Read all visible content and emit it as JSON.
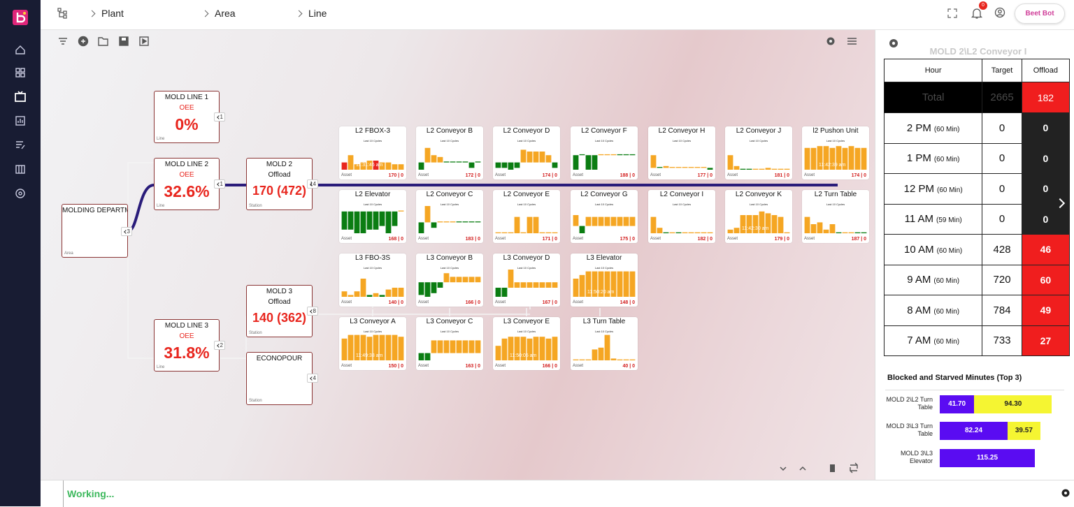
{
  "nav": {
    "breadcrumb": [
      "Plant",
      "Area",
      "Line"
    ],
    "notification_count": 0,
    "bot_button": "Beet Bot"
  },
  "tree": {
    "area": {
      "title": "MOLDING DEPARTM",
      "kind": "Area",
      "children": 3
    },
    "lines": [
      {
        "title": "MOLD LINE 1",
        "metric": "OEE",
        "value": "0%",
        "kind": "Line",
        "children": 1
      },
      {
        "title": "MOLD LINE 2",
        "metric": "OEE",
        "value": "32.6%",
        "kind": "Line",
        "children": 1
      },
      {
        "title": "MOLD LINE 3",
        "metric": "OEE",
        "value": "31.8%",
        "kind": "Line",
        "children": 2
      }
    ],
    "stations": [
      {
        "title": "MOLD 2",
        "subtitle": "Offload",
        "value": "170 (472)",
        "kind": "Station",
        "children": 14
      },
      {
        "title": "MOLD 3",
        "subtitle": "Offload",
        "value": "140 (362)",
        "kind": "Station",
        "children": 8
      },
      {
        "title": "ECONOPOUR",
        "kind": "Station",
        "children": 4
      }
    ]
  },
  "asset_rows": [
    [
      {
        "name": "L2 FBOX-3",
        "subtitle": "Last 10 Cycles",
        "stamp": "11:31:46 am",
        "footer": "Asset",
        "count": "170 | 0",
        "values": [
          4,
          8,
          3,
          4,
          5,
          5,
          4,
          4,
          3,
          3
        ],
        "colors": [
          "#e8261e",
          "#f5a623",
          "#f5a623",
          "#f5a623",
          "#f5a623",
          "#e8261e",
          "#f5a623",
          "#f5a623",
          "#f5a623",
          "#f5a623"
        ]
      },
      {
        "name": "L2 Conveyor B",
        "subtitle": "Last 10 Cycles",
        "footer": "Asset",
        "count": "172 | 0",
        "values": [
          -4,
          8,
          4,
          3,
          0.5,
          0.5,
          0.5,
          0.5,
          -3,
          0.5
        ],
        "colors": [
          "#0b7d12",
          "#f5a623",
          "#f5a623",
          "#f5a623",
          "#0b7d12",
          "#0b7d12",
          "#0b7d12",
          "#0b7d12",
          "#0b7d12",
          "#0b7d12"
        ]
      },
      {
        "name": "L2 Conveyor D",
        "subtitle": "Last 10 Cycles",
        "footer": "Asset",
        "count": "174 | 0",
        "values": [
          -3,
          -3,
          -4,
          -3,
          7,
          6,
          6,
          6,
          4,
          -3
        ],
        "colors": [
          "#0b7d12",
          "#0b7d12",
          "#0b7d12",
          "#0b7d12",
          "#f5a623",
          "#f5a623",
          "#f5a623",
          "#f5a623",
          "#f5a623",
          "#0b7d12"
        ]
      },
      {
        "name": "L2 Conveyor F",
        "subtitle": "Last 10 Cycles",
        "footer": "Asset",
        "count": "188 | 0",
        "values": [
          -8,
          0.5,
          -8,
          -8,
          0.5,
          0.5,
          0.5,
          0.5,
          0.5,
          0.5
        ],
        "colors": [
          "#0b7d12",
          "#0b7d12",
          "#0b7d12",
          "#0b7d12",
          "#f5a623",
          "#f5a623",
          "#f5a623",
          "#0b7d12",
          "#0b7d12",
          "#0b7d12"
        ]
      },
      {
        "name": "L2 Conveyor H",
        "subtitle": "Last 10 Cycles",
        "footer": "Asset",
        "count": "177 | 0",
        "values": [
          7,
          0.5,
          1,
          0.5,
          0.5,
          0.5,
          0.5,
          0.5,
          0.5,
          -1
        ],
        "colors": [
          "#f5a623",
          "#0b7d12",
          "#f5a623",
          "#f5a623",
          "#f5a623",
          "#f5a623",
          "#f5a623",
          "#f5a623",
          "#f5a623",
          "#0b7d12"
        ]
      },
      {
        "name": "L2 Conveyor J",
        "subtitle": "Last 10 Cycles",
        "footer": "Asset",
        "count": "181 | 0",
        "values": [
          8,
          2,
          0.5,
          0.5,
          0.5,
          0.5,
          1,
          0.5,
          0.5,
          0.5
        ],
        "colors": [
          "#f5a623",
          "#f5a623",
          "#0b7d12",
          "#0b7d12",
          "#f5a623",
          "#f5a623",
          "#f5a623",
          "#f5a623",
          "#f5a623",
          "#f5a623"
        ]
      },
      {
        "name": "l2 Pushon Unit",
        "subtitle": "Last 10 Cycles",
        "stamp": "11:42:39 am",
        "footer": "Asset",
        "count": "174 | 0",
        "values": [
          12,
          12,
          13,
          13,
          12,
          13,
          12,
          13,
          12,
          12
        ],
        "colors": [
          "#f5a623",
          "#f5a623",
          "#f5a623",
          "#f5a623",
          "#f5a623",
          "#f5a623",
          "#f5a623",
          "#f5a623",
          "#f5a623",
          "#f5a623"
        ]
      }
    ],
    [
      {
        "name": "L2 Elevator",
        "subtitle": "Last 10 Cycles",
        "footer": "Asset",
        "count": "168 | 0",
        "values": [
          -10,
          -10,
          -12,
          -12,
          -10,
          -10,
          -8,
          -12,
          -8,
          0.5
        ],
        "colors": [
          "#0b7d12",
          "#0b7d12",
          "#0b7d12",
          "#0b7d12",
          "#0b7d12",
          "#0b7d12",
          "#0b7d12",
          "#0b7d12",
          "#0b7d12",
          "#f5a623"
        ]
      },
      {
        "name": "L2 Conveyor C",
        "subtitle": "Last 10 Cycles",
        "footer": "Asset",
        "count": "183 | 0",
        "values": [
          -6,
          9,
          -3,
          0.5,
          0.5,
          0.5,
          0.5,
          0.5,
          0.5,
          0.5
        ],
        "colors": [
          "#0b7d12",
          "#f5a623",
          "#0b7d12",
          "#f5a623",
          "#f5a623",
          "#f5a623",
          "#0b7d12",
          "#0b7d12",
          "#0b7d12",
          "#0b7d12"
        ]
      },
      {
        "name": "L2 Conveyor E",
        "subtitle": "Last 10 Cycles",
        "footer": "Asset",
        "count": "171 | 0",
        "values": [
          0.5,
          0.5,
          0.5,
          9,
          0.5,
          9,
          9,
          0.5,
          0.5,
          0.5
        ],
        "colors": [
          "#f5a623",
          "#f5a623",
          "#f5a623",
          "#f5a623",
          "#f5a623",
          "#f5a623",
          "#f5a623",
          "#f5a623",
          "#f5a623",
          "#f5a623"
        ]
      },
      {
        "name": "L2 Conveyor G",
        "subtitle": "Last 10 Cycles",
        "footer": "Asset",
        "count": "175 | 0",
        "values": [
          6,
          -4,
          5,
          5,
          5,
          5,
          5,
          5,
          5,
          5
        ],
        "colors": [
          "#f5a623",
          "#0b7d12",
          "#f5a623",
          "#f5a623",
          "#f5a623",
          "#f5a623",
          "#f5a623",
          "#f5a623",
          "#f5a623",
          "#f5a623"
        ]
      },
      {
        "name": "L2 Conveyor I",
        "subtitle": "Last 10 Cycles",
        "footer": "Asset",
        "count": "182 | 0",
        "values": [
          9,
          3,
          0.5,
          0.5,
          0.5,
          0.5,
          0.5,
          0.5,
          0.5,
          0.5
        ],
        "colors": [
          "#f5a623",
          "#f5a623",
          "#0b7d12",
          "#f5a623",
          "#0b7d12",
          "#f5a623",
          "#f5a623",
          "#f5a623",
          "#f5a623",
          "#f5a623"
        ]
      },
      {
        "name": "L2 Conveyor K",
        "subtitle": "Last 10 Cycles",
        "stamp": "11:42:30 am",
        "footer": "Asset",
        "count": "179 | 0",
        "values": [
          2,
          3,
          10,
          10,
          10,
          12,
          11,
          10,
          9,
          0.5
        ],
        "colors": [
          "#f5a623",
          "#f5a623",
          "#f5a623",
          "#f5a623",
          "#f5a623",
          "#f5a623",
          "#f5a623",
          "#f5a623",
          "#f5a623",
          "#f5a623"
        ]
      },
      {
        "name": "L2 Turn Table",
        "subtitle": "Last 10 Cycles",
        "footer": "Asset",
        "count": "187 | 0",
        "values": [
          9,
          5,
          6,
          2,
          5,
          0.5,
          0.5,
          0.5,
          0.5,
          0.5
        ],
        "colors": [
          "#f5a623",
          "#f5a623",
          "#f5a623",
          "#f5a623",
          "#f5a623",
          "#0b7d12",
          "#f5a623",
          "#f5a623",
          "#0b7d12",
          "#0b7d12"
        ]
      }
    ],
    [
      {
        "name": "L3 FBO-3S",
        "subtitle": "Last 10 Cycles",
        "footer": "Asset",
        "count": "140 | 0",
        "values": [
          3,
          1,
          3,
          10,
          1,
          2,
          1,
          4,
          5,
          5
        ],
        "colors": [
          "#f5a623",
          "#f5a623",
          "#f5a623",
          "#f5a623",
          "#0b7d12",
          "#f5a623",
          "#0b7d12",
          "#f5a623",
          "#f5a623",
          "#f5a623"
        ]
      },
      {
        "name": "L3 Conveyor B",
        "subtitle": "Last 10 Cycles",
        "footer": "Asset",
        "count": "166 | 0",
        "values": [
          -7,
          -8,
          -6,
          -3,
          5,
          3,
          3,
          3,
          3,
          3
        ],
        "colors": [
          "#0b7d12",
          "#0b7d12",
          "#0b7d12",
          "#0b7d12",
          "#f5a623",
          "#f5a623",
          "#f5a623",
          "#f5a623",
          "#f5a623",
          "#f5a623"
        ]
      },
      {
        "name": "L3 Conveyor D",
        "subtitle": "Last 10 Cycles",
        "footer": "Asset",
        "count": "167 | 0",
        "values": [
          -5,
          -5,
          10,
          3,
          3,
          3,
          3,
          3,
          3,
          3
        ],
        "colors": [
          "#0b7d12",
          "#0b7d12",
          "#f5a623",
          "#f5a623",
          "#f5a623",
          "#f5a623",
          "#f5a623",
          "#f5a623",
          "#f5a623",
          "#f5a623"
        ]
      },
      {
        "name": "L3 Elevator",
        "subtitle": "Last 10 Cycles",
        "stamp": "11:50:20 am",
        "footer": "Asset",
        "count": "148 | 0",
        "values": [
          10,
          12,
          14,
          14,
          14,
          14,
          14,
          14,
          14,
          14
        ],
        "colors": [
          "#f5a623",
          "#f5a623",
          "#f5a623",
          "#f5a623",
          "#f5a623",
          "#f5a623",
          "#f5a623",
          "#f5a623",
          "#f5a623",
          "#f5a623"
        ]
      }
    ],
    [
      {
        "name": "L3 Conveyor A",
        "subtitle": "Last 10 Cycles",
        "stamp": "11:49:38 am",
        "footer": "Asset",
        "count": "150 | 0",
        "values": [
          12,
          14,
          14,
          14,
          13,
          14,
          14,
          14,
          14,
          13
        ],
        "colors": [
          "#f5a623",
          "#f5a623",
          "#f5a623",
          "#f5a623",
          "#f5a623",
          "#f5a623",
          "#f5a623",
          "#f5a623",
          "#f5a623",
          "#f5a623"
        ]
      },
      {
        "name": "L3 Conveyor C",
        "subtitle": "Last 10 Cycles",
        "footer": "Asset",
        "count": "163 | 0",
        "values": [
          -4,
          -4,
          7,
          7,
          7,
          7,
          7,
          7,
          7,
          7
        ],
        "colors": [
          "#0b7d12",
          "#0b7d12",
          "#f5a623",
          "#f5a623",
          "#f5a623",
          "#f5a623",
          "#f5a623",
          "#f5a623",
          "#f5a623",
          "#f5a623"
        ]
      },
      {
        "name": "L3 Conveyor E",
        "subtitle": "Last 10 Cycles",
        "stamp": "11:50:05 am",
        "footer": "Asset",
        "count": "166 | 0",
        "values": [
          8,
          12,
          13,
          13,
          13,
          12,
          13,
          13,
          12,
          13
        ],
        "colors": [
          "#f5a623",
          "#f5a623",
          "#f5a623",
          "#f5a623",
          "#f5a623",
          "#f5a623",
          "#f5a623",
          "#f5a623",
          "#f5a623",
          "#f5a623"
        ]
      },
      {
        "name": "L3 Turn Table",
        "subtitle": "Last 10 Cycles",
        "footer": "Asset",
        "count": "40 | 0",
        "values": [
          0.5,
          0.5,
          0.5,
          6,
          7,
          14,
          1,
          0.5,
          0.5,
          0.5
        ],
        "colors": [
          "#f5a623",
          "#f5a623",
          "#f5a623",
          "#f5a623",
          "#f5a623",
          "#f5a623",
          "#f5a623",
          "#f5a623",
          "#f5a623",
          "#f5a623"
        ]
      }
    ]
  ],
  "detail": {
    "title": "MOLD 2\\L2 Conveyor I",
    "headers": [
      "Hour",
      "Target",
      "Offload"
    ],
    "total": {
      "label": "Total",
      "target": 2665,
      "offload": 182
    },
    "rows": [
      {
        "hour": "2 PM",
        "duration": "(60 Min)",
        "target": 0,
        "offload": 0
      },
      {
        "hour": "1 PM",
        "duration": "(60 Min)",
        "target": 0,
        "offload": 0
      },
      {
        "hour": "12 PM",
        "duration": "(60 Min)",
        "target": 0,
        "offload": 0
      },
      {
        "hour": "11 AM",
        "duration": "(59 Min)",
        "target": 0,
        "offload": 0
      },
      {
        "hour": "10 AM",
        "duration": "(60 Min)",
        "target": 428,
        "offload": 46
      },
      {
        "hour": "9 AM",
        "duration": "(60 Min)",
        "target": 720,
        "offload": 60
      },
      {
        "hour": "8 AM",
        "duration": "(60 Min)",
        "target": 784,
        "offload": 49
      },
      {
        "hour": "7 AM",
        "duration": "(60 Min)",
        "target": 733,
        "offload": 27
      }
    ]
  },
  "blocked": {
    "title": "Blocked and Starved Minutes (Top 3)",
    "rows": [
      {
        "label": "MOLD 2\\L2 Turn Table",
        "segments": [
          {
            "value": 41.7,
            "label": "41.70",
            "color": "#5a0cf2"
          },
          {
            "value": 94.3,
            "label": "94.30",
            "color": "#f5f532"
          }
        ]
      },
      {
        "label": "MOLD 3\\L3 Turn Table",
        "segments": [
          {
            "value": 82.24,
            "label": "82.24",
            "color": "#5a0cf2"
          },
          {
            "value": 39.57,
            "label": "39.57",
            "color": "#f5f532"
          }
        ]
      },
      {
        "label": "MOLD 3\\L3 Elevator",
        "segments": [
          {
            "value": 115.25,
            "label": "115.25",
            "color": "#5a0cf2"
          }
        ]
      }
    ]
  },
  "status": "Working..."
}
